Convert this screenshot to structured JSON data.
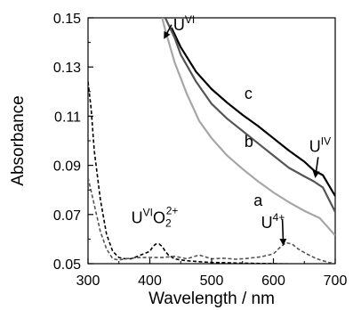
{
  "chart_data": {
    "type": "line",
    "title": "",
    "xlabel": "Wavelength / nm",
    "ylabel": "Absorbance",
    "xlim": [
      300,
      700
    ],
    "ylim": [
      0.05,
      0.15
    ],
    "x_ticks": [
      "300",
      "400",
      "500",
      "600",
      "700"
    ],
    "y_ticks": [
      "0.15",
      "0.13",
      "0.11",
      "0.09",
      "0.07",
      "0.05"
    ],
    "grid": false,
    "legend": "none",
    "series": [
      {
        "name": "c",
        "color": "#000000",
        "style": "solid",
        "x": [
          435,
          450,
          475,
          500,
          525,
          550,
          575,
          600,
          625,
          650,
          665,
          680,
          700
        ],
        "y": [
          0.146,
          0.138,
          0.128,
          0.121,
          0.1155,
          0.1105,
          0.106,
          0.101,
          0.096,
          0.0915,
          0.088,
          0.086,
          0.0775
        ]
      },
      {
        "name": "b",
        "color": "#555555",
        "style": "solid",
        "x": [
          425,
          440,
          450,
          475,
          500,
          525,
          550,
          575,
          600,
          625,
          650,
          665,
          680,
          700
        ],
        "y": [
          0.15,
          0.142,
          0.135,
          0.124,
          0.115,
          0.109,
          0.104,
          0.099,
          0.094,
          0.089,
          0.0855,
          0.0835,
          0.081,
          0.071
        ]
      },
      {
        "name": "a",
        "color": "#a6a6a6",
        "style": "solid",
        "x": [
          420,
          425,
          440,
          460,
          480,
          500,
          525,
          550,
          575,
          600,
          625,
          650,
          675,
          700
        ],
        "y": [
          0.15,
          0.145,
          0.132,
          0.119,
          0.108,
          0.101,
          0.094,
          0.0885,
          0.0835,
          0.079,
          0.075,
          0.0715,
          0.0685,
          0.0615
        ]
      },
      {
        "name": "UVIO2 2+",
        "color": "#000000",
        "style": "dashed",
        "x": [
          300,
          305,
          310,
          320,
          330,
          340,
          350,
          360,
          370,
          380,
          390,
          400,
          405,
          410,
          415,
          420,
          425,
          430,
          440,
          450,
          460,
          480,
          500,
          550,
          600,
          650,
          700
        ],
        "y": [
          0.124,
          0.113,
          0.096,
          0.076,
          0.062,
          0.055,
          0.0525,
          0.052,
          0.052,
          0.053,
          0.054,
          0.055,
          0.057,
          0.058,
          0.058,
          0.057,
          0.055,
          0.0535,
          0.052,
          0.0515,
          0.0512,
          0.0508,
          0.0505,
          0.0502,
          0.05,
          0.0498,
          0.0495
        ]
      },
      {
        "name": "U4+",
        "color": "#555555",
        "style": "dashed",
        "x": [
          300,
          310,
          320,
          330,
          340,
          350,
          360,
          380,
          400,
          420,
          440,
          460,
          480,
          500,
          520,
          540,
          560,
          580,
          600,
          610,
          620,
          630,
          640,
          650,
          660,
          670,
          680,
          690,
          700
        ],
        "y": [
          0.085,
          0.074,
          0.063,
          0.056,
          0.052,
          0.0515,
          0.052,
          0.0525,
          0.0525,
          0.0525,
          0.053,
          0.052,
          0.0535,
          0.052,
          0.0522,
          0.0518,
          0.0522,
          0.0528,
          0.054,
          0.0565,
          0.0585,
          0.058,
          0.056,
          0.0545,
          0.0532,
          0.052,
          0.0512,
          0.0505,
          0.05
        ]
      }
    ],
    "annotations": [
      {
        "base": "U",
        "sup": "VI",
        "text": "UVI",
        "x": 438,
        "y": 0.145,
        "arrow_to": [
          424,
          0.142
        ]
      },
      {
        "base": "U",
        "sup": "IV",
        "text": "UIV",
        "x": 658,
        "y": 0.0955,
        "arrow_to": [
          668,
          0.0855
        ]
      },
      {
        "text": "c",
        "x": 553,
        "y": 0.117
      },
      {
        "text": "b",
        "x": 553,
        "y": 0.0975
      },
      {
        "text": "a",
        "x": 568,
        "y": 0.0735
      },
      {
        "base": "U",
        "sup": "VI",
        "mid": "O",
        "sub": "2",
        "sup2": "2+",
        "text": "UVIO2 2+",
        "x": 370,
        "y": 0.0665
      },
      {
        "base": "U",
        "sup": "4+",
        "text": "U4+",
        "x": 580,
        "y": 0.0645,
        "arrow_to": [
          616,
          0.058
        ]
      }
    ]
  }
}
